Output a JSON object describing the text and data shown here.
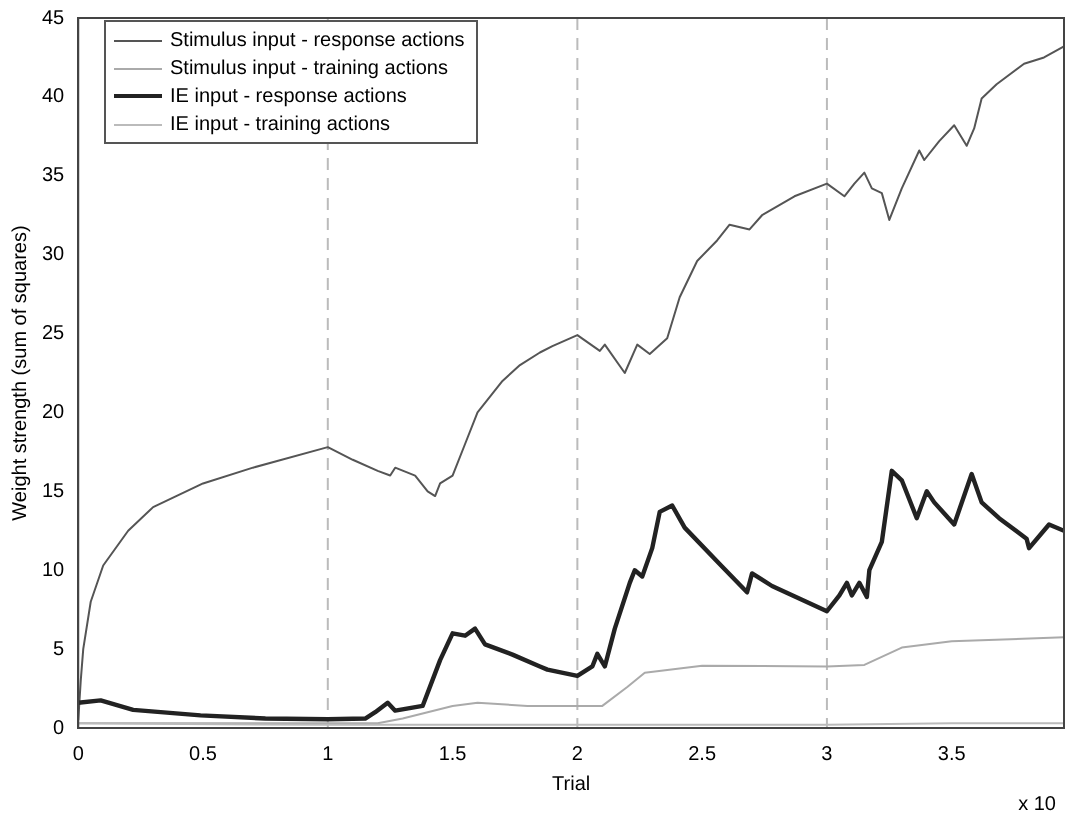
{
  "chart_data": {
    "type": "line",
    "xlabel": "Trial",
    "ylabel": "Weight strength (sum of squares)",
    "annotations": [
      "x 10"
    ],
    "xlim": [
      0,
      3.95
    ],
    "xticks": [
      0,
      0.5,
      1,
      1.5,
      2,
      2.5,
      3,
      3.5
    ],
    "ylim": [
      0,
      45
    ],
    "yticks": [
      0,
      5,
      10,
      15,
      20,
      25,
      30,
      35,
      40,
      45
    ],
    "grid": false,
    "legend": "top left",
    "marker": "none",
    "line_style": "solid",
    "ref_lines": [
      {
        "axis": "x",
        "value": 1,
        "color": "#bbbbbb",
        "line_style": "dashed"
      },
      {
        "axis": "x",
        "value": 2,
        "color": "#bbbbbb",
        "line_style": "dashed"
      },
      {
        "axis": "x",
        "value": 3,
        "color": "#bbbbbb",
        "line_style": "dashed"
      }
    ],
    "series": [
      {
        "name": "Stimulus input - response actions",
        "color": "#555555",
        "x": [
          0,
          0.01,
          0.02,
          0.05,
          0.1,
          0.2,
          0.3,
          0.5,
          0.7,
          1.0,
          1.1,
          1.2,
          1.25,
          1.27,
          1.35,
          1.4,
          1.43,
          1.45,
          1.5,
          1.55,
          1.6,
          1.7,
          1.77,
          1.85,
          1.9,
          2.0,
          2.09,
          2.11,
          2.19,
          2.24,
          2.29,
          2.36,
          2.41,
          2.48,
          2.56,
          2.61,
          2.69,
          2.74,
          2.87,
          3.0,
          3.07,
          3.11,
          3.15,
          3.18,
          3.22,
          3.25,
          3.3,
          3.37,
          3.39,
          3.45,
          3.51,
          3.56,
          3.59,
          3.62,
          3.68,
          3.79,
          3.87,
          3.95
        ],
        "values": [
          0.5,
          3,
          5,
          8,
          10.3,
          12.5,
          14,
          15.5,
          16.5,
          17.8,
          17,
          16.3,
          16,
          16.5,
          16,
          15,
          14.7,
          15.5,
          16,
          18,
          20,
          22,
          23,
          23.8,
          24.2,
          24.9,
          23.9,
          24.3,
          22.5,
          24.3,
          23.7,
          24.7,
          27.3,
          29.6,
          30.9,
          31.9,
          31.6,
          32.5,
          33.7,
          34.5,
          33.7,
          34.5,
          35.2,
          34.2,
          33.9,
          32.2,
          34.2,
          36.6,
          36,
          37.2,
          38.2,
          36.9,
          38,
          39.9,
          40.8,
          42.1,
          42.5,
          43.2
        ]
      },
      {
        "name": "Stimulus input - training actions",
        "color": "#aaaaaa",
        "x": [
          0,
          0.5,
          1.0,
          1.2,
          1.3,
          1.4,
          1.5,
          1.6,
          1.8,
          2.0,
          2.1,
          2.2,
          2.27,
          2.5,
          3.0,
          3.15,
          3.3,
          3.5,
          3.95
        ],
        "values": [
          0.3,
          0.3,
          0.3,
          0.3,
          0.6,
          1.0,
          1.4,
          1.6,
          1.4,
          1.4,
          1.4,
          2.6,
          3.5,
          3.95,
          3.9,
          4.0,
          5.1,
          5.5,
          5.75
        ]
      },
      {
        "name": "IE input - response actions",
        "color": "#222222",
        "x": [
          0,
          0.09,
          0.22,
          0.49,
          0.75,
          1.0,
          1.15,
          1.19,
          1.24,
          1.27,
          1.38,
          1.45,
          1.5,
          1.55,
          1.59,
          1.63,
          1.74,
          1.85,
          1.88,
          2.0,
          2.06,
          2.08,
          2.11,
          2.15,
          2.21,
          2.23,
          2.26,
          2.3,
          2.33,
          2.38,
          2.43,
          2.57,
          2.68,
          2.7,
          2.78,
          3.0,
          3.05,
          3.08,
          3.1,
          3.13,
          3.16,
          3.17,
          3.22,
          3.26,
          3.3,
          3.36,
          3.4,
          3.43,
          3.51,
          3.58,
          3.62,
          3.69,
          3.8,
          3.81,
          3.89,
          3.95
        ],
        "values": [
          1.6,
          1.75,
          1.15,
          0.8,
          0.6,
          0.55,
          0.6,
          1.0,
          1.6,
          1.1,
          1.4,
          4.3,
          6.0,
          5.85,
          6.3,
          5.3,
          4.65,
          3.9,
          3.7,
          3.3,
          3.9,
          4.7,
          3.9,
          6.3,
          9.2,
          10.0,
          9.6,
          11.4,
          13.7,
          14.1,
          12.7,
          10.4,
          8.6,
          9.8,
          9.0,
          7.4,
          8.4,
          9.2,
          8.4,
          9.2,
          8.3,
          10.0,
          11.8,
          16.3,
          15.7,
          13.3,
          15.0,
          14.3,
          12.9,
          16.1,
          14.3,
          13.3,
          12.0,
          11.4,
          12.9,
          12.5
        ]
      },
      {
        "name": "IE input - training actions",
        "color": "#bbbbbb",
        "x": [
          0,
          1,
          2,
          3,
          3.5,
          3.95
        ],
        "values": [
          0.3,
          0.2,
          0.2,
          0.2,
          0.3,
          0.3
        ]
      }
    ]
  }
}
